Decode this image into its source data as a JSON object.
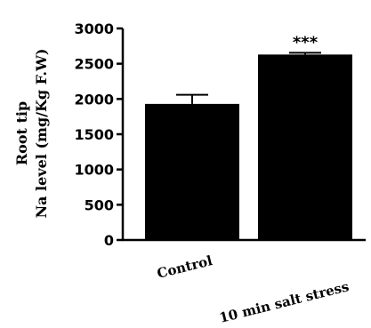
{
  "chart_data": {
    "type": "bar",
    "categories": [
      "Control",
      "10 min salt stress"
    ],
    "values": [
      1930,
      2630
    ],
    "errors": [
      130,
      25
    ],
    "annotations": [
      "",
      "***"
    ],
    "ylabel_line1": "Root tip",
    "ylabel_line2": "Na level (mg/Kg F.W)",
    "ylim": [
      0,
      3000
    ],
    "yticks": [
      "0",
      "500",
      "1000",
      "1500",
      "2000",
      "2500",
      "3000"
    ],
    "bar_color": "#000000",
    "grid": false
  }
}
